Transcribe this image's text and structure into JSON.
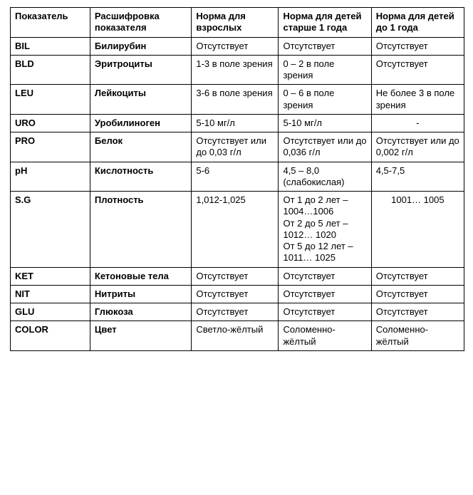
{
  "table": {
    "columns": [
      "Показатель",
      "Расшифровка показателя",
      "Норма для взрослых",
      "Норма для детей старше 1 года",
      "Норма для детей до 1 года"
    ],
    "rows": [
      {
        "param": "BIL",
        "desc": "Билирубин",
        "adult": "Отсутствует",
        "child_over1": "Отсутствует",
        "child_under1": "Отсутствует",
        "under1_center": false
      },
      {
        "param": "BLD",
        "desc": "Эритроциты",
        "adult": "1-3 в поле зрения",
        "child_over1": "0 – 2 в поле зрения",
        "child_under1": "Отсутствует",
        "under1_center": false
      },
      {
        "param": "LEU",
        "desc": "Лейкоциты",
        "adult": "3-6 в поле зрения",
        "child_over1": "0 – 6 в поле зрения",
        "child_under1": "Не более 3 в поле зрения",
        "under1_center": false
      },
      {
        "param": "URO",
        "desc": "Уробилиноген",
        "adult": "5-10 мг/л",
        "child_over1": " 5-10 мг/л",
        "child_under1": "-",
        "under1_center": true
      },
      {
        "param": "PRO",
        "desc": "Белок",
        "adult": "Отсутствует или до 0,03 г/л",
        "child_over1": "Отсутствует или  до 0,036 г/л",
        "child_under1": "Отсутствует или до 0,002 г/л",
        "under1_center": false
      },
      {
        "param": "pH",
        "desc": "Кислотность",
        "adult": "5-6",
        "child_over1": "4,5 – 8,0 (слабокислая)",
        "child_under1": "4,5-7,5",
        "under1_center": false
      },
      {
        "param": "S.G",
        "desc": "Плотность",
        "adult": "1,012-1,025",
        "child_over1": "От 1 до 2 лет – 1004…1006\nОт 2 до 5 лет – 1012… 1020\nОт 5 до 12 лет – 1011… 1025",
        "child_under1": "1001… 1005",
        "under1_center": true
      },
      {
        "param": "KET",
        "desc": "Кетоновые тела",
        "adult": "Отсутствует",
        "child_over1": "Отсутствует",
        "child_under1": "Отсутствует",
        "under1_center": false
      },
      {
        "param": "NIT",
        "desc": "Нитриты",
        "adult": "Отсутствует",
        "child_over1": "Отсутствует",
        "child_under1": "Отсутствует",
        "under1_center": false
      },
      {
        "param": "GLU",
        "desc": "Глюкоза",
        "adult": "Отсутствует",
        "child_over1": "Отсутствует",
        "child_under1": "Отсутствует",
        "under1_center": false
      },
      {
        "param": "COLOR",
        "desc": "Цвет",
        "adult": "Светло-жёлтый",
        "child_over1": "Соломенно-жёлтый",
        "child_under1": "Соломенно-жёлтый",
        "under1_center": false
      }
    ]
  }
}
